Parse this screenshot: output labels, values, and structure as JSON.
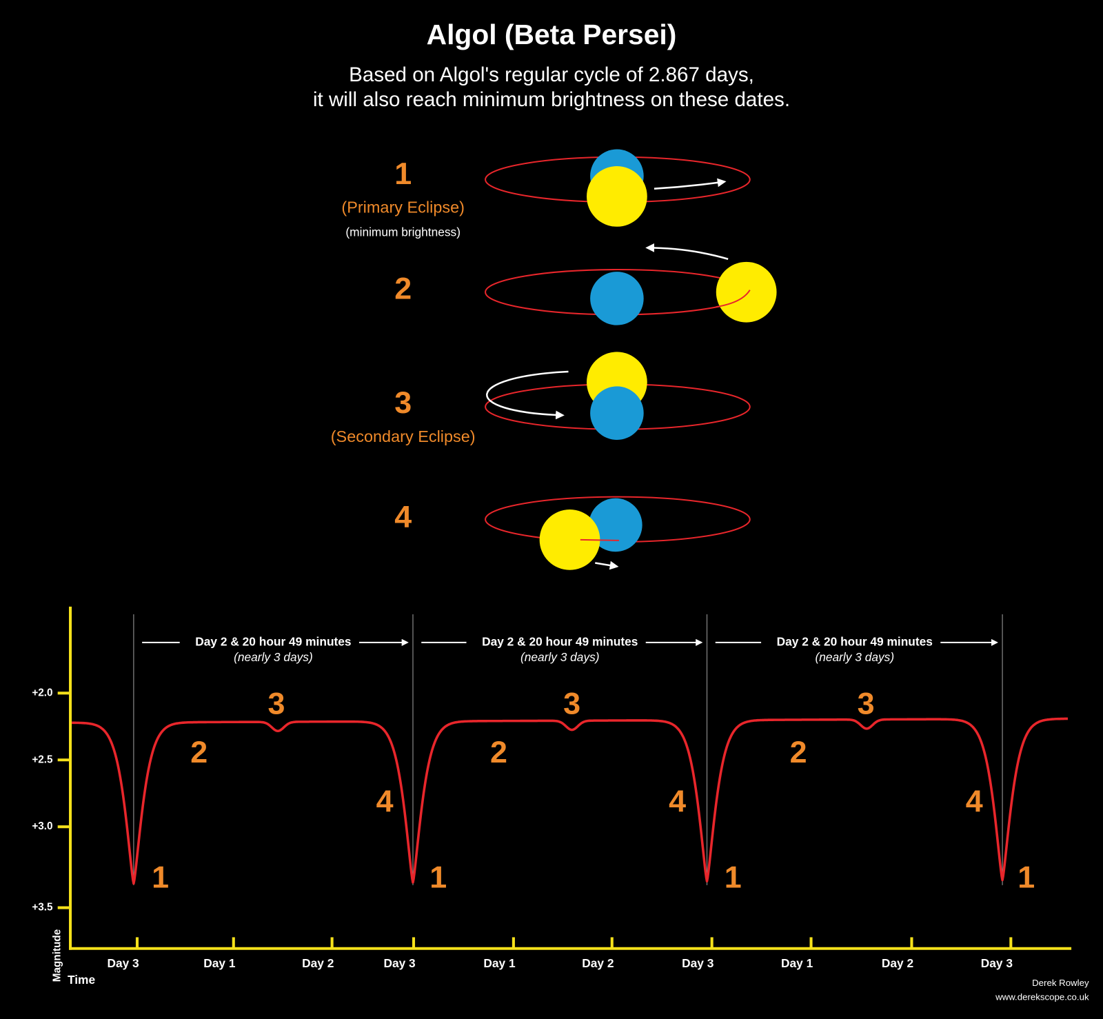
{
  "title": "Algol (Beta Persei)",
  "subtitle": [
    "Based on Algol's regular cycle of 2.867 days,",
    "it will also reach minimum brightness on these dates."
  ],
  "phases": [
    {
      "number": "1",
      "label": "(Primary Eclipse)",
      "note": "(minimum brightness)"
    },
    {
      "number": "2"
    },
    {
      "number": "3",
      "label": "(Secondary Eclipse)"
    },
    {
      "number": "4"
    }
  ],
  "light_curve": {
    "y_label": "Magnitude",
    "x_label": "Time",
    "y_ticks": [
      "+2.0",
      "+2.5",
      "+3.0",
      "+3.5"
    ],
    "x_ticks": [
      "Day 3",
      "Day 1",
      "Day 2",
      "Day 3",
      "Day 1",
      "Day 2",
      "Day 3",
      "Day 1",
      "Day 2",
      "Day 3"
    ],
    "intervals": [
      {
        "text": "Day 2 & 20 hour 49 minutes",
        "note": "(nearly 3 days)"
      },
      {
        "text": "Day 2 & 20 hour 49 minutes",
        "note": "(nearly 3 days)"
      },
      {
        "text": "Day 2 & 20 hour 49 minutes",
        "note": "(nearly 3 days)"
      }
    ],
    "curve_labels": [
      "1",
      "2",
      "3",
      "4",
      "1",
      "2",
      "3",
      "4",
      "1",
      "2",
      "3",
      "4",
      "1"
    ]
  },
  "credit": [
    "Derek Rowley",
    "www.derekscope.co.uk"
  ]
}
